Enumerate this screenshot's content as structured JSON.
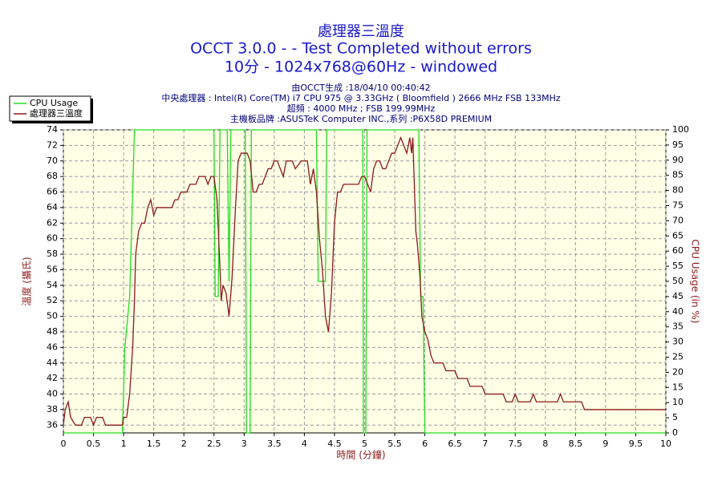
{
  "chart_data": {
    "type": "line",
    "title": "處理器三溫度",
    "title_line2": "OCCT 3.0.0 -  - Test Completed without errors",
    "title_line3": "10分 - 1024x768@60Hz - windowed",
    "subtitles": [
      "由OCCT生成 :18/04/10 00:40:42",
      "中央處理器 : Intel(R) Core(TM) i7 CPU 975 @ 3.33GHz ( Bloomfield ) 2666 MHz FSB 133MHz",
      "超頻 : 4000 MHz ; FSB 199.99MHz",
      "主機板品牌 :ASUSTeK Computer INC.,系列 :P6X58D PREMIUM"
    ],
    "xlabel": "時間 (分鐘)",
    "ylabel": "溫度 (攝氏)",
    "y2label": "CPU Usage (in %)",
    "xlim": [
      0,
      10
    ],
    "xticks": [
      0,
      0.5,
      1,
      1.5,
      2,
      2.5,
      3,
      3.5,
      4,
      4.5,
      5,
      5.5,
      6,
      6.5,
      7,
      7.5,
      8,
      8.5,
      9,
      9.5,
      10
    ],
    "ylim": [
      35,
      74
    ],
    "yticks": [
      36,
      38,
      40,
      42,
      44,
      46,
      48,
      50,
      52,
      54,
      56,
      58,
      60,
      62,
      64,
      66,
      68,
      70,
      72,
      74
    ],
    "y2lim": [
      0,
      100
    ],
    "y2ticks": [
      0,
      5,
      10,
      15,
      20,
      25,
      30,
      35,
      40,
      45,
      50,
      55,
      60,
      65,
      70,
      75,
      80,
      85,
      90,
      95,
      100
    ],
    "grid": true,
    "series": [
      {
        "name": "CPU Usage",
        "color": "#22dd22",
        "axis": "y2",
        "x": [
          0,
          0.98,
          1.02,
          1.1,
          1.18,
          2.5,
          2.52,
          2.57,
          2.6,
          2.72,
          2.75,
          2.78,
          3.02,
          3.04,
          3.1,
          3.12,
          4.2,
          4.23,
          4.35,
          4.37,
          4.97,
          4.98,
          5.02,
          5.04,
          5.9,
          5.93,
          5.97,
          6.0,
          10
        ],
        "values": [
          0,
          0,
          28,
          45,
          100,
          100,
          45,
          45,
          100,
          100,
          50,
          100,
          100,
          0,
          0,
          100,
          100,
          50,
          50,
          100,
          100,
          0,
          0,
          100,
          100,
          45,
          45,
          0,
          0
        ]
      },
      {
        "name": "處理器三溫度",
        "color": "#8b1a1a",
        "x": [
          0,
          0.03,
          0.08,
          0.12,
          0.2,
          0.3,
          0.35,
          0.45,
          0.5,
          0.55,
          0.65,
          0.7,
          0.98,
          1.0,
          1.05,
          1.1,
          1.15,
          1.18,
          1.2,
          1.25,
          1.3,
          1.35,
          1.4,
          1.45,
          1.5,
          1.55,
          1.8,
          1.85,
          1.9,
          1.95,
          2.05,
          2.1,
          2.2,
          2.25,
          2.35,
          2.4,
          2.45,
          2.5,
          2.55,
          2.6,
          2.62,
          2.65,
          2.7,
          2.75,
          2.8,
          2.85,
          2.9,
          2.95,
          3.05,
          3.1,
          3.15,
          3.2,
          3.25,
          3.3,
          3.35,
          3.4,
          3.45,
          3.5,
          3.55,
          3.6,
          3.65,
          3.7,
          3.8,
          3.85,
          3.95,
          4.05,
          4.1,
          4.15,
          4.2,
          4.25,
          4.3,
          4.35,
          4.4,
          4.45,
          4.5,
          4.55,
          4.6,
          4.65,
          4.9,
          4.95,
          5.0,
          5.05,
          5.1,
          5.15,
          5.2,
          5.25,
          5.3,
          5.35,
          5.4,
          5.45,
          5.5,
          5.55,
          5.6,
          5.65,
          5.7,
          5.75,
          5.78,
          5.8,
          5.85,
          5.88,
          5.92,
          5.95,
          6.0,
          6.05,
          6.1,
          6.15,
          6.3,
          6.35,
          6.5,
          6.55,
          6.7,
          6.75,
          6.95,
          7.0,
          7.3,
          7.35,
          7.45,
          7.5,
          7.55,
          7.75,
          7.8,
          7.85,
          8.2,
          8.25,
          8.3,
          8.6,
          8.65,
          10
        ],
        "values": [
          36,
          38,
          39,
          37,
          36,
          36,
          37,
          37,
          36,
          37,
          37,
          36,
          36,
          37,
          37,
          40,
          46,
          52,
          58,
          61,
          62,
          62,
          64,
          65,
          63,
          64,
          64,
          65,
          65,
          66,
          66,
          67,
          67,
          68,
          68,
          67,
          68,
          68,
          65,
          56,
          52,
          54,
          53,
          50,
          55,
          63,
          70,
          71,
          71,
          70,
          66,
          66,
          67,
          67,
          68,
          69,
          69,
          70,
          70,
          69,
          68,
          70,
          70,
          69,
          70,
          70,
          67,
          69,
          66,
          60,
          56,
          50,
          48,
          53,
          62,
          66,
          66,
          67,
          67,
          68,
          68,
          67,
          66,
          69,
          70,
          70,
          69,
          69,
          70,
          71,
          71,
          72,
          73,
          72,
          71,
          73,
          71,
          73,
          61,
          59,
          55,
          50,
          48,
          47,
          45,
          44,
          44,
          43,
          43,
          42,
          42,
          41,
          41,
          40,
          40,
          39,
          39,
          40,
          39,
          39,
          40,
          39,
          39,
          40,
          39,
          39,
          38,
          38
        ]
      }
    ]
  }
}
